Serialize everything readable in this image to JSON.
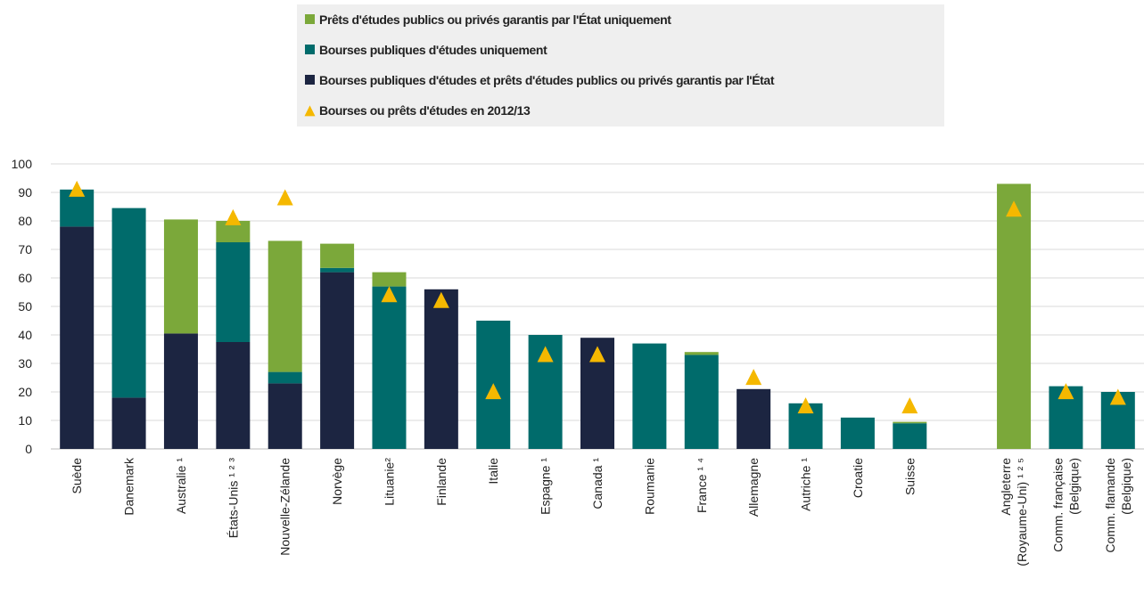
{
  "chart_data": {
    "type": "bar",
    "stacked": true,
    "categories": [
      "Suède",
      "Danemark",
      "Australie ¹",
      "États-Unis ¹ ² ³",
      "Nouvelle-Zélande",
      "Norvège",
      "Lituanie²",
      "Finlande",
      "Italie",
      "Espagne ¹",
      "Canada ¹",
      "Roumanie",
      "France ¹ ⁴",
      "Allemagne",
      "Autriche ¹",
      "Croatie",
      "Suisse",
      null,
      "Angleterre\n(Royaume-Uni) ¹ ² ⁵",
      "Comm. française\n(Belgique)",
      "Comm. flamande\n(Belgique)"
    ],
    "series": [
      {
        "name": "Prêts d'études publics ou privés garantis par l'État uniquement",
        "color": "#7ba83a",
        "values": [
          null,
          null,
          40,
          7.5,
          46,
          8.5,
          5,
          null,
          null,
          null,
          null,
          null,
          1,
          null,
          null,
          null,
          0.5,
          null,
          93,
          null,
          null
        ]
      },
      {
        "name": "Bourses publiques d'études uniquement",
        "color": "#006b6b",
        "values": [
          13,
          66.5,
          null,
          35,
          4,
          1.5,
          57,
          null,
          45,
          40,
          null,
          37,
          33,
          null,
          16,
          11,
          9,
          null,
          null,
          22,
          20
        ]
      },
      {
        "name": "Bourses publiques d'études et prêts d'études publics ou privés garantis par l'État",
        "color": "#1c2541",
        "values": [
          78,
          18,
          40.5,
          37.5,
          23,
          62,
          null,
          56,
          null,
          null,
          39,
          null,
          null,
          21,
          null,
          null,
          null,
          null,
          null,
          null,
          null
        ]
      }
    ],
    "markers": {
      "name": "Bourses ou prêts d'études en 2012/13",
      "color": "#f5b800",
      "values": [
        91,
        null,
        null,
        81,
        88,
        null,
        54,
        52,
        20,
        33,
        33,
        null,
        null,
        25,
        15,
        null,
        15,
        null,
        84,
        20,
        18
      ]
    },
    "ylim": [
      0,
      100
    ],
    "yticks": [
      0,
      10,
      20,
      30,
      40,
      50,
      60,
      70,
      80,
      90,
      100
    ],
    "grid": true
  }
}
